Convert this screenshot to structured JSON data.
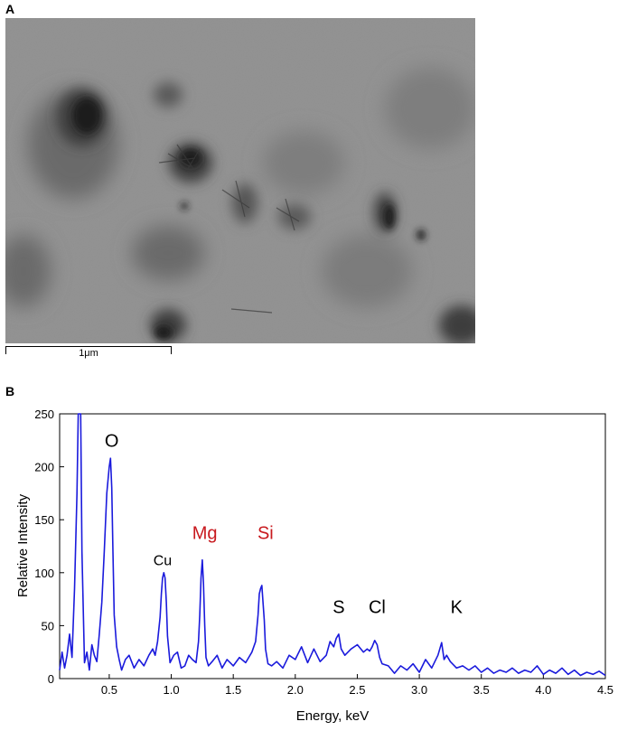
{
  "figure": {
    "panel_a_label": "A",
    "panel_b_label": "B",
    "scale_bar_label": "1μm"
  },
  "chart_data": {
    "type": "line",
    "title": "",
    "xlabel": "Energy, keV",
    "ylabel": "Relative Intensity",
    "xlim": [
      0.1,
      4.5
    ],
    "ylim": [
      0,
      250
    ],
    "x_ticks": [
      0.5,
      1.0,
      1.5,
      2.0,
      2.5,
      3.0,
      3.5,
      4.0,
      4.5
    ],
    "x_tick_labels": [
      "0.5",
      "1.0",
      "1.5",
      "2.0",
      "2.5",
      "3.0",
      "3.5",
      "4.0",
      "4.5"
    ],
    "y_ticks": [
      0,
      50,
      100,
      150,
      200,
      250
    ],
    "y_tick_labels": [
      "0",
      "50",
      "100",
      "150",
      "200",
      "250"
    ],
    "series": [
      {
        "color": "#1a1adc",
        "x": [
          0.1,
          0.12,
          0.14,
          0.16,
          0.18,
          0.2,
          0.22,
          0.24,
          0.25,
          0.26,
          0.27,
          0.28,
          0.3,
          0.32,
          0.34,
          0.36,
          0.38,
          0.4,
          0.42,
          0.44,
          0.46,
          0.48,
          0.5,
          0.51,
          0.52,
          0.53,
          0.54,
          0.56,
          0.58,
          0.6,
          0.63,
          0.66,
          0.7,
          0.74,
          0.78,
          0.82,
          0.85,
          0.87,
          0.89,
          0.91,
          0.92,
          0.93,
          0.94,
          0.95,
          0.96,
          0.97,
          0.99,
          1.02,
          1.05,
          1.08,
          1.11,
          1.14,
          1.17,
          1.2,
          1.22,
          1.23,
          1.24,
          1.25,
          1.26,
          1.27,
          1.28,
          1.3,
          1.33,
          1.37,
          1.41,
          1.45,
          1.5,
          1.55,
          1.6,
          1.65,
          1.68,
          1.7,
          1.71,
          1.72,
          1.73,
          1.74,
          1.75,
          1.76,
          1.78,
          1.81,
          1.85,
          1.9,
          1.95,
          2.0,
          2.05,
          2.1,
          2.15,
          2.2,
          2.25,
          2.28,
          2.31,
          2.33,
          2.35,
          2.37,
          2.4,
          2.45,
          2.5,
          2.55,
          2.58,
          2.6,
          2.62,
          2.64,
          2.66,
          2.68,
          2.7,
          2.75,
          2.8,
          2.85,
          2.9,
          2.95,
          3.0,
          3.05,
          3.1,
          3.15,
          3.18,
          3.2,
          3.22,
          3.25,
          3.3,
          3.35,
          3.4,
          3.45,
          3.5,
          3.55,
          3.6,
          3.65,
          3.7,
          3.75,
          3.8,
          3.85,
          3.9,
          3.95,
          4.0,
          4.05,
          4.1,
          4.15,
          4.2,
          4.25,
          4.3,
          4.35,
          4.4,
          4.45,
          4.5
        ],
        "y": [
          8,
          25,
          10,
          22,
          42,
          20,
          85,
          175,
          250,
          250,
          250,
          120,
          15,
          25,
          8,
          32,
          22,
          16,
          42,
          72,
          120,
          175,
          200,
          208,
          180,
          120,
          60,
          30,
          18,
          8,
          18,
          22,
          10,
          18,
          12,
          22,
          28,
          22,
          35,
          58,
          80,
          95,
          100,
          95,
          72,
          40,
          15,
          22,
          25,
          10,
          12,
          22,
          18,
          15,
          35,
          60,
          95,
          112,
          90,
          50,
          20,
          12,
          16,
          22,
          10,
          18,
          12,
          20,
          15,
          25,
          35,
          60,
          80,
          85,
          88,
          72,
          55,
          28,
          14,
          12,
          16,
          10,
          22,
          18,
          30,
          15,
          28,
          16,
          22,
          35,
          30,
          38,
          42,
          28,
          22,
          28,
          32,
          25,
          28,
          26,
          30,
          36,
          32,
          20,
          14,
          12,
          5,
          12,
          8,
          14,
          6,
          18,
          10,
          22,
          34,
          18,
          22,
          16,
          10,
          12,
          8,
          12,
          6,
          10,
          5,
          8,
          6,
          10,
          5,
          8,
          6,
          12,
          4,
          8,
          5,
          10,
          4,
          8,
          3,
          6,
          4,
          7,
          3
        ]
      }
    ],
    "annotations": [
      {
        "text": "O",
        "x": 0.52,
        "y": 219,
        "color": "#000000"
      },
      {
        "text": "Cu",
        "x": 0.93,
        "y": 107,
        "color": "#000000"
      },
      {
        "text": "Mg",
        "x": 1.27,
        "y": 132,
        "color": "#c8191e"
      },
      {
        "text": "Si",
        "x": 1.76,
        "y": 132,
        "color": "#c8191e"
      },
      {
        "text": "S",
        "x": 2.35,
        "y": 62,
        "color": "#000000"
      },
      {
        "text": "Cl",
        "x": 2.66,
        "y": 62,
        "color": "#000000"
      },
      {
        "text": "K",
        "x": 3.3,
        "y": 62,
        "color": "#000000"
      }
    ]
  }
}
